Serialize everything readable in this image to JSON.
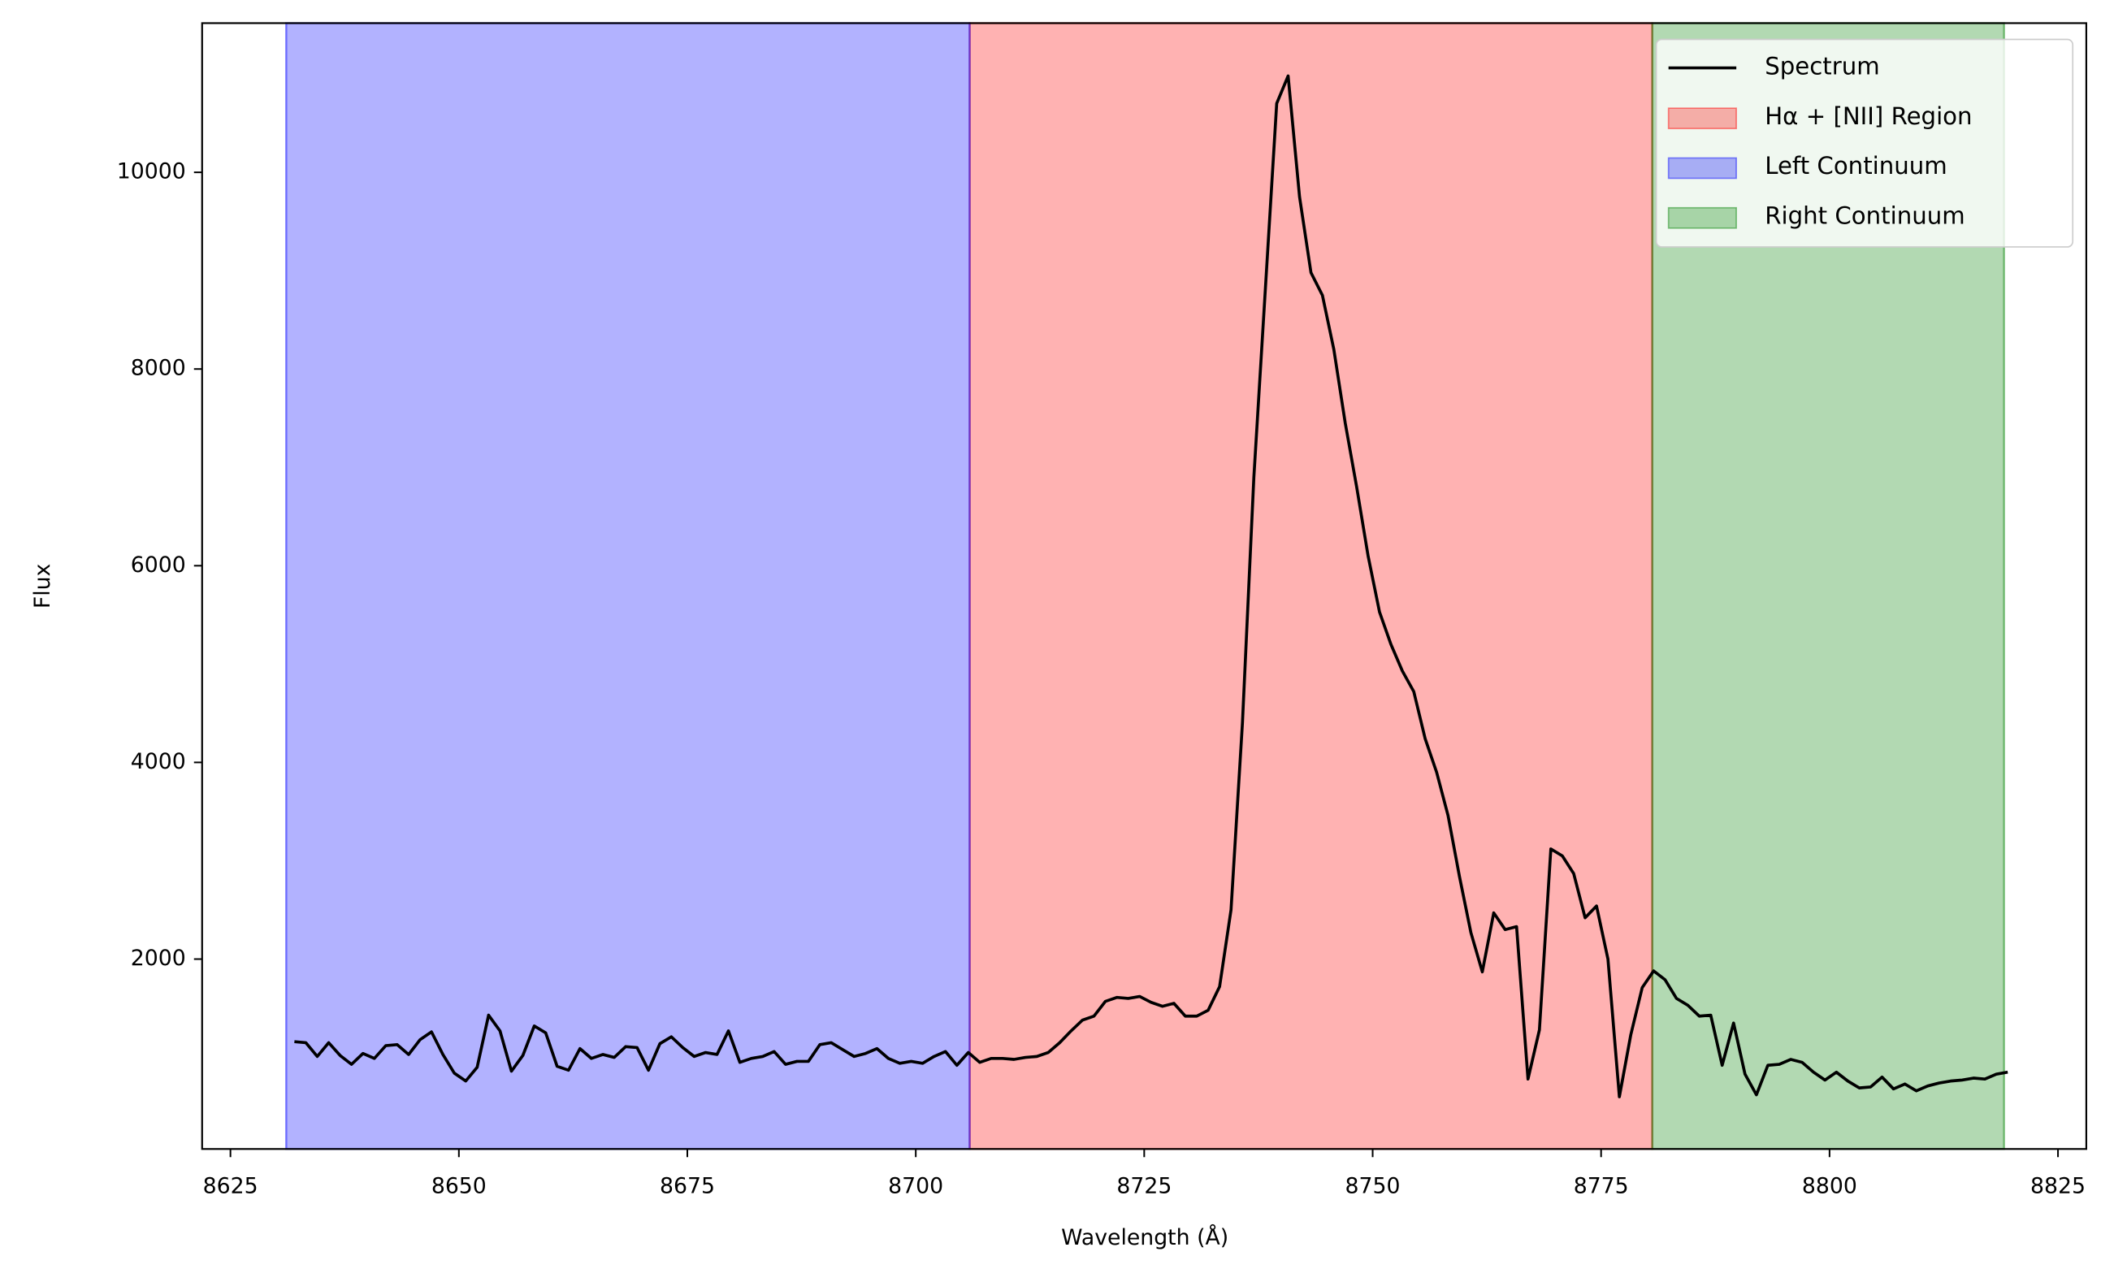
{
  "chart_data": {
    "type": "line",
    "xlabel": "Wavelength (Å)",
    "ylabel": "Flux",
    "xlim": [
      8621.9,
      8828.1
    ],
    "ylim": [
      69,
      11517
    ],
    "xticks": [
      8625,
      8650,
      8675,
      8700,
      8725,
      8750,
      8775,
      8800,
      8825
    ],
    "yticks": [
      2000,
      4000,
      6000,
      8000,
      10000
    ],
    "legend": "upper right",
    "regions": [
      {
        "name": "Hα + [NII] Region",
        "color": "#ff0000",
        "alpha": 0.3,
        "range": [
          8705.9,
          8780.6
        ]
      },
      {
        "name": "Left Continuum",
        "color": "#0000ff",
        "alpha": 0.3,
        "range": [
          8631.1,
          8705.9
        ]
      },
      {
        "name": "Right Continuum",
        "color": "#008000",
        "alpha": 0.3,
        "range": [
          8780.6,
          8819.1
        ]
      }
    ],
    "series": [
      {
        "name": "Spectrum",
        "color": "#000000",
        "x": [
          8632,
          8633.25,
          8634.5,
          8635.75,
          8637,
          8638.25,
          8639.5,
          8640.75,
          8642,
          8643.25,
          8644.5,
          8645.75,
          8647,
          8648.25,
          8649.5,
          8650.75,
          8652,
          8653.25,
          8654.5,
          8655.75,
          8657,
          8658.25,
          8659.5,
          8660.75,
          8662,
          8663.25,
          8664.5,
          8665.75,
          8667,
          8668.25,
          8669.5,
          8670.75,
          8672,
          8673.25,
          8674.5,
          8675.75,
          8677,
          8678.25,
          8679.5,
          8680.75,
          8682,
          8683.25,
          8684.5,
          8685.75,
          8687,
          8688.25,
          8689.5,
          8690.75,
          8692,
          8693.25,
          8694.5,
          8695.75,
          8697,
          8698.25,
          8699.5,
          8700.75,
          8702,
          8703.25,
          8704.5,
          8705.75,
          8707,
          8708.25,
          8709.5,
          8710.75,
          8712,
          8713.25,
          8714.5,
          8715.75,
          8717,
          8718.25,
          8719.5,
          8720.75,
          8722,
          8723.25,
          8724.5,
          8725.75,
          8727,
          8728.25,
          8729.5,
          8730.75,
          8732,
          8733.25,
          8734.5,
          8735.75,
          8737,
          8738.25,
          8739.5,
          8740.75,
          8742,
          8743.25,
          8744.5,
          8745.75,
          8747,
          8748.25,
          8749.5,
          8750.75,
          8752,
          8753.25,
          8754.5,
          8755.75,
          8757,
          8758.25,
          8759.5,
          8760.75,
          8762,
          8763.25,
          8764.5,
          8765.75,
          8767,
          8768.25,
          8769.5,
          8770.75,
          8772,
          8773.25,
          8774.5,
          8775.75,
          8777,
          8778.25,
          8779.5,
          8780.75,
          8782,
          8783.25,
          8784.5,
          8785.75,
          8787,
          8788.25,
          8789.5,
          8790.75,
          8792,
          8793.25,
          8794.5,
          8795.75,
          8797,
          8798.25,
          8799.5,
          8800.75,
          8802,
          8803.25,
          8804.5,
          8805.75,
          8807,
          8808.25,
          8809.5,
          8810.75,
          8812,
          8813.25,
          8814.5,
          8815.75,
          8817,
          8818.25,
          8819.5
        ],
        "values": [
          1160,
          1150,
          1010,
          1150,
          1020,
          930,
          1040,
          990,
          1120,
          1130,
          1030,
          1180,
          1260,
          1030,
          840,
          760,
          900,
          1430,
          1270,
          860,
          1020,
          1320,
          1250,
          910,
          870,
          1090,
          990,
          1030,
          1000,
          1110,
          1100,
          870,
          1140,
          1210,
          1100,
          1010,
          1050,
          1030,
          1270,
          950,
          990,
          1010,
          1060,
          930,
          960,
          960,
          1130,
          1150,
          1080,
          1010,
          1040,
          1090,
          990,
          940,
          960,
          940,
          1010,
          1060,
          920,
          1050,
          950,
          990,
          990,
          980,
          1000,
          1010,
          1050,
          1150,
          1270,
          1380,
          1420,
          1570,
          1610,
          1600,
          1620,
          1560,
          1520,
          1550,
          1420,
          1420,
          1480,
          1720,
          2500,
          4400,
          6900,
          8800,
          10700,
          10980,
          9750,
          8980,
          8750,
          8200,
          7450,
          6800,
          6100,
          5530,
          5200,
          4930,
          4720,
          4240,
          3900,
          3460,
          2840,
          2270,
          1870,
          2470,
          2300,
          2330,
          780,
          1280,
          3120,
          3050,
          2870,
          2420,
          2540,
          2000,
          600,
          1230,
          1710,
          1880,
          1790,
          1600,
          1530,
          1420,
          1430,
          920,
          1350,
          830,
          620,
          920,
          930,
          980,
          950,
          850,
          770,
          850,
          760,
          690,
          700,
          800,
          680,
          730,
          660,
          710,
          740,
          760,
          770,
          790,
          780,
          830,
          850
        ]
      }
    ]
  }
}
